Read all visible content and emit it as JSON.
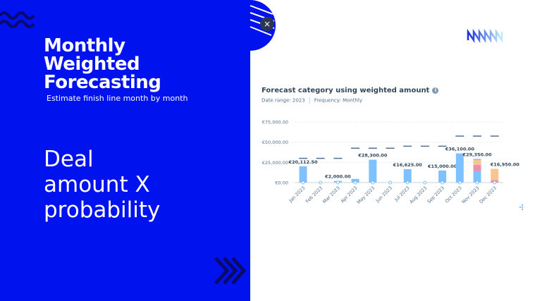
{
  "slide": {
    "title_lines": [
      "Monthly",
      "Weighted",
      "Forecasting"
    ],
    "subtitle": "Estimate finish line month by month",
    "big_lines": [
      "Deal",
      "amount X",
      "probability"
    ]
  },
  "report": {
    "title": "Forecast category using weighted amount",
    "date_range": "Date range: 2023",
    "frequency": "Frequency: Monthly",
    "close_label": "×",
    "info_label": "i"
  },
  "colors": {
    "brand_blue": "#0012ee",
    "bar_blue": "#7fc1ff",
    "pink": "#e891b3",
    "orange": "#f7c58e",
    "purple": "#b9a7e6",
    "target": "#516f90"
  },
  "chart_data": {
    "type": "bar",
    "stacked": true,
    "categories": [
      "Jan 2023",
      "Feb 2023",
      "Mar 2023",
      "Apr 2023",
      "May 2023",
      "Jun 2023",
      "Jul 2023",
      "Aug 2023",
      "Sep 2023",
      "Oct 2023",
      "Nov 2023",
      "Dec 2023"
    ],
    "series": [
      {
        "values": [
          20112.5,
          0,
          2000,
          4500,
          28300,
          0,
          16625,
          0,
          15000,
          36100,
          14000,
          0
        ],
        "color": "#7fc1ff"
      },
      {
        "values": [
          0,
          0,
          0,
          0,
          0,
          0,
          0,
          0,
          0,
          0,
          8000,
          3000
        ],
        "color": "#e891b3"
      },
      {
        "values": [
          0,
          0,
          0,
          0,
          0,
          0,
          0,
          0,
          0,
          0,
          6000,
          13950
        ],
        "color": "#f7c58e"
      },
      {
        "values": [
          0,
          0,
          0,
          0,
          0,
          0,
          0,
          0,
          0,
          0,
          1350,
          0
        ],
        "color": "#b9a7e6"
      }
    ],
    "targets": [
      30000,
      30000,
      30000,
      42500,
      42500,
      42500,
      45000,
      45000,
      45000,
      57500,
      57500,
      57500
    ],
    "data_labels": [
      "€20,112.50",
      "",
      "€2,000.00",
      "",
      "€28,300.00",
      "",
      "€16,625.00",
      "",
      "€15,000.00",
      "€36,100.00",
      "€29,350.00",
      "€16,950.00"
    ],
    "yticks": [
      "€0.00",
      "€25,000.00",
      "€50,000.00",
      "€75,000.00"
    ],
    "ytick_values": [
      0,
      25000,
      50000,
      75000
    ],
    "ylim": [
      0,
      75000
    ],
    "grid": true
  }
}
